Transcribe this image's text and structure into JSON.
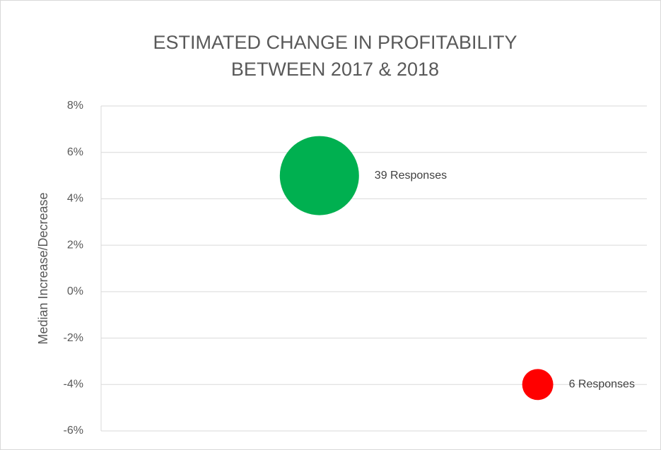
{
  "chart_data": {
    "type": "bubble",
    "title": [
      "ESTIMATED CHANGE IN PROFITABILITY",
      "BETWEEN 2017 & 2018"
    ],
    "y_label": "Median Increase/Decrease",
    "x": [
      2,
      4
    ],
    "xlim": [
      0,
      5
    ],
    "series": [
      {
        "name": null,
        "colors": [
          "#00b050",
          "#ff0000"
        ],
        "values": [
          5,
          -4
        ],
        "sizes": [
          39,
          6
        ],
        "value_labels": [
          "39 Responses",
          "6 Responses"
        ]
      }
    ],
    "ylim": [
      -6,
      8
    ],
    "yticks": [
      {
        "value": -6,
        "label": "-6%"
      },
      {
        "value": -4,
        "label": "-4%"
      },
      {
        "value": -2,
        "label": "-2%"
      },
      {
        "value": 0,
        "label": "0%"
      },
      {
        "value": 2,
        "label": "2%"
      },
      {
        "value": 4,
        "label": "4%"
      },
      {
        "value": 6,
        "label": "6%"
      },
      {
        "value": 8,
        "label": "8%"
      }
    ],
    "grid": true
  }
}
